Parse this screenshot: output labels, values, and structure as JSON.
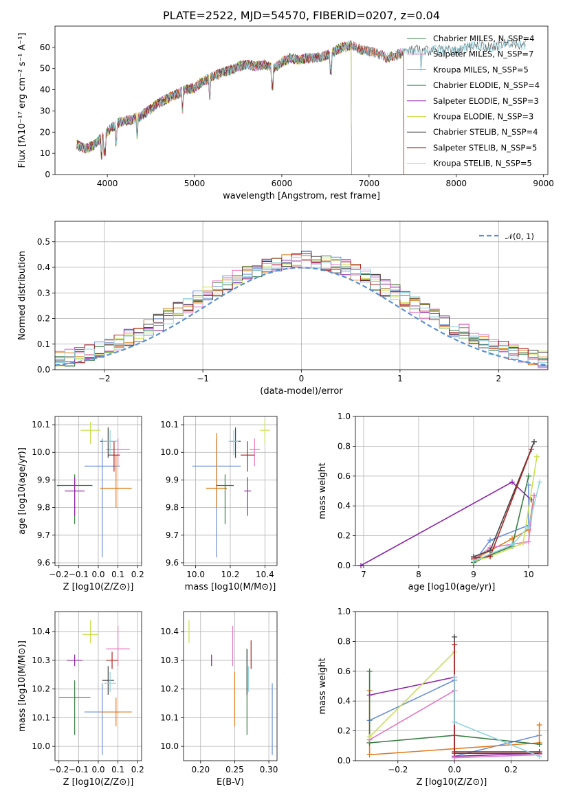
{
  "chart_data": [
    {
      "id": "spectrum",
      "type": "line",
      "title": "PLATE=2522, MJD=54570, FIBERID=0207, z=0.04",
      "xlabel": "wavelength [Angstrom, rest frame]",
      "ylabel": "Flux [fλ10⁻¹⁷ erg cm⁻² s⁻¹ A⁻¹]",
      "xlim": [
        3400,
        9050
      ],
      "ylim": [
        0,
        70
      ],
      "xticks": [
        4000,
        5000,
        6000,
        7000,
        8000,
        9000
      ],
      "yticks": [
        0,
        10,
        20,
        30,
        40,
        50,
        60
      ],
      "grid": false,
      "legend_position": "top-right",
      "continuum": {
        "x": [
          3650,
          3750,
          3850,
          3950,
          4050,
          4150,
          4300,
          4400,
          4500,
          4600,
          4700,
          4800,
          4900,
          5000,
          5100,
          5200,
          5300,
          5400,
          5500,
          5600,
          5700,
          5800,
          5900,
          6000,
          6100,
          6200,
          6300,
          6400,
          6500,
          6600,
          6700,
          6800,
          6900,
          7000,
          7100,
          7200,
          7300,
          7400,
          7600,
          7800,
          8000,
          8200,
          8400,
          8600,
          8800
        ],
        "y": [
          14,
          12,
          14,
          18,
          22,
          25,
          26,
          28,
          31,
          34,
          36,
          38,
          40,
          41,
          44,
          46,
          48,
          49,
          51,
          52,
          51,
          52,
          50,
          53,
          55,
          54,
          55,
          55,
          56,
          58,
          60,
          61,
          59,
          58,
          57,
          55,
          56,
          58,
          59,
          60,
          59,
          62,
          61,
          63,
          62
        ]
      },
      "series": [
        {
          "name": "Chabrier MILES, N_SSP=4",
          "color": "#3a7d44",
          "xmax": 7400
        },
        {
          "name": "Salpeter MILES, N_SSP=7",
          "color": "#e377c2",
          "xmax": 7400
        },
        {
          "name": "Kroupa MILES, N_SSP=5",
          "color": "#e07b1a",
          "xmax": 7400
        },
        {
          "name": "Chabrier ELODIE, N_SSP=4",
          "color": "#2e8b57",
          "xmax": 6800
        },
        {
          "name": "Salpeter ELODIE, N_SSP=3",
          "color": "#8e24aa",
          "xmax": 6800
        },
        {
          "name": "Kroupa ELODIE, N_SSP=3",
          "color": "#c9e04b",
          "xmax": 6800
        },
        {
          "name": "Chabrier STELIB, N_SSP=4",
          "color": "#444444",
          "xmax": 8800
        },
        {
          "name": "Salpeter STELIB, N_SSP=5",
          "color": "#b22222",
          "xmax": 7400
        },
        {
          "name": "Kroupa STELIB, N_SSP=5",
          "color": "#8fd3e0",
          "xmax": 8800
        }
      ]
    },
    {
      "id": "residuals",
      "type": "line",
      "xlabel": "(data-model)/error",
      "ylabel": "Normed distribution",
      "xlim": [
        -2.5,
        2.5
      ],
      "ylim": [
        0,
        0.58
      ],
      "xticks": [
        -2,
        -1,
        0,
        1,
        2
      ],
      "yticks": [
        0.0,
        0.1,
        0.2,
        0.3,
        0.4,
        0.5
      ],
      "grid": true,
      "legend_position": "top-right",
      "reference": {
        "name": "𝒩(0, 1)",
        "color": "#5b8fd6"
      },
      "bin_width": 0.1,
      "series_colors": [
        "#6b8fd6",
        "#e07b1a",
        "#3a7d44",
        "#8e24aa",
        "#e377c2",
        "#c9e04b",
        "#444444",
        "#b22222",
        "#8fd3e0"
      ]
    },
    {
      "id": "age_vs_Z",
      "type": "scatter",
      "xlabel": "Z [log10(Z/Z⊙)]",
      "ylabel": "age [log10(age/yr)]",
      "xlim": [
        -0.22,
        0.22
      ],
      "ylim": [
        9.59,
        10.13
      ],
      "xticks": [
        -0.2,
        -0.1,
        0.0,
        0.1,
        0.2
      ],
      "yticks": [
        9.6,
        9.7,
        9.8,
        9.9,
        10.0,
        10.1
      ],
      "grid": true,
      "points": [
        {
          "x": 0.02,
          "y": 9.95,
          "xerr": 0.09,
          "yerr": [
            0.33,
            0.1
          ],
          "color": "#6b8fd6"
        },
        {
          "x": 0.09,
          "y": 9.87,
          "xerr": 0.08,
          "yerr": [
            0.07,
            0.12
          ],
          "color": "#e07b1a"
        },
        {
          "x": -0.12,
          "y": 9.88,
          "xerr": 0.09,
          "yerr": [
            0.14,
            0.04
          ],
          "color": "#3a7d44"
        },
        {
          "x": -0.12,
          "y": 9.86,
          "xerr": 0.05,
          "yerr": [
            0.09,
            0.05
          ],
          "color": "#8e24aa"
        },
        {
          "x": 0.1,
          "y": 10.01,
          "xerr": 0.06,
          "yerr": [
            0.06,
            0.04
          ],
          "color": "#e377c2"
        },
        {
          "x": -0.04,
          "y": 10.08,
          "xerr": 0.05,
          "yerr": [
            0.05,
            0.03
          ],
          "color": "#c9e04b"
        },
        {
          "x": 0.05,
          "y": 10.04,
          "xerr": 0.04,
          "yerr": [
            0.06,
            0.05
          ],
          "color": "#444444"
        },
        {
          "x": 0.08,
          "y": 9.99,
          "xerr": 0.03,
          "yerr": [
            0.06,
            0.05
          ],
          "color": "#b22222"
        },
        {
          "x": 0.06,
          "y": 10.04,
          "xerr": 0.04,
          "yerr": [
            0.05,
            0.04
          ],
          "color": "#8fd3e0"
        }
      ]
    },
    {
      "id": "age_vs_mass",
      "type": "scatter",
      "xlabel": "mass [log10(M/M⊙)]",
      "xlim": [
        9.93,
        10.47
      ],
      "ylim": [
        9.59,
        10.13
      ],
      "xticks": [
        10.0,
        10.2,
        10.4
      ],
      "yticks": [
        9.6,
        9.7,
        9.8,
        9.9,
        10.0,
        10.1
      ],
      "grid": true,
      "points": [
        {
          "x": 10.12,
          "y": 9.95,
          "xerr": 0.14,
          "yerr": [
            0.33,
            0.1
          ],
          "color": "#6b8fd6"
        },
        {
          "x": 10.12,
          "y": 9.87,
          "xerr": 0.06,
          "yerr": [
            0.07,
            0.2
          ],
          "color": "#e07b1a"
        },
        {
          "x": 10.17,
          "y": 9.88,
          "xerr": 0.05,
          "yerr": [
            0.14,
            0.04
          ],
          "color": "#3a7d44"
        },
        {
          "x": 10.3,
          "y": 9.86,
          "xerr": 0.02,
          "yerr": [
            0.09,
            0.05
          ],
          "color": "#8e24aa"
        },
        {
          "x": 10.34,
          "y": 10.01,
          "xerr": 0.03,
          "yerr": [
            0.06,
            0.04
          ],
          "color": "#e377c2"
        },
        {
          "x": 10.4,
          "y": 10.08,
          "xerr": 0.03,
          "yerr": [
            0.05,
            0.04
          ],
          "color": "#c9e04b"
        },
        {
          "x": 10.23,
          "y": 10.04,
          "xerr": 0.03,
          "yerr": [
            0.06,
            0.05
          ],
          "color": "#444444"
        },
        {
          "x": 10.3,
          "y": 9.99,
          "xerr": 0.04,
          "yerr": [
            0.06,
            0.05
          ],
          "color": "#b22222"
        },
        {
          "x": 10.22,
          "y": 10.04,
          "xerr": 0.03,
          "yerr": [
            0.05,
            0.04
          ],
          "color": "#8fd3e0"
        }
      ]
    },
    {
      "id": "weight_vs_age",
      "type": "line",
      "xlabel": "age [log10(age/yr)]",
      "ylabel": "mass weight",
      "xlim": [
        6.85,
        10.35
      ],
      "ylim": [
        0.0,
        1.0
      ],
      "xticks": [
        7,
        8,
        9,
        10
      ],
      "yticks": [
        0.0,
        0.2,
        0.4,
        0.6,
        0.8,
        1.0
      ],
      "grid": true,
      "series": [
        {
          "color": "#6b8fd6",
          "x": [
            9.0,
            9.3,
            10.0,
            10.0
          ],
          "y": [
            0.02,
            0.17,
            0.27,
            0.54
          ]
        },
        {
          "color": "#e07b1a",
          "x": [
            9.0,
            9.3,
            9.7,
            10.0,
            10.1
          ],
          "y": [
            0.04,
            0.1,
            0.18,
            0.24,
            0.47
          ]
        },
        {
          "color": "#3a7d44",
          "x": [
            9.0,
            9.3,
            9.7,
            10.0
          ],
          "y": [
            0.02,
            0.07,
            0.13,
            0.6
          ]
        },
        {
          "color": "#8e24aa",
          "x": [
            6.95,
            9.7,
            10.05
          ],
          "y": [
            0.0,
            0.56,
            0.44
          ]
        },
        {
          "color": "#e377c2",
          "x": [
            9.0,
            9.3,
            10.0,
            10.1
          ],
          "y": [
            0.04,
            0.12,
            0.16,
            0.47
          ]
        },
        {
          "color": "#c9e04b",
          "x": [
            9.0,
            9.3,
            9.9,
            10.15
          ],
          "y": [
            0.03,
            0.06,
            0.15,
            0.73
          ]
        },
        {
          "color": "#444444",
          "x": [
            9.0,
            9.3,
            10.1
          ],
          "y": [
            0.06,
            0.1,
            0.83
          ]
        },
        {
          "color": "#b22222",
          "x": [
            9.0,
            9.3,
            10.05
          ],
          "y": [
            0.05,
            0.06,
            0.78
          ]
        },
        {
          "color": "#8fd3e0",
          "x": [
            9.0,
            9.7,
            10.0,
            10.2
          ],
          "y": [
            0.03,
            0.14,
            0.26,
            0.56
          ]
        }
      ]
    },
    {
      "id": "mass_vs_Z",
      "type": "scatter",
      "xlabel": "Z [log10(Z/Z⊙)]",
      "ylabel": "mass [log10(M/M⊙)]",
      "xlim": [
        -0.22,
        0.22
      ],
      "ylim": [
        9.95,
        10.47
      ],
      "xticks": [
        -0.2,
        -0.1,
        0.0,
        0.1,
        0.2
      ],
      "yticks": [
        10.0,
        10.1,
        10.2,
        10.3,
        10.4
      ],
      "grid": true,
      "points": [
        {
          "x": 0.02,
          "y": 10.12,
          "xerr": 0.09,
          "yerr": [
            0.15,
            0.1
          ],
          "color": "#6b8fd6"
        },
        {
          "x": 0.09,
          "y": 10.12,
          "xerr": 0.08,
          "yerr": [
            0.05,
            0.05
          ],
          "color": "#e07b1a"
        },
        {
          "x": -0.12,
          "y": 10.17,
          "xerr": 0.08,
          "yerr": [
            0.13,
            0.06
          ],
          "color": "#3a7d44"
        },
        {
          "x": -0.12,
          "y": 10.3,
          "xerr": 0.04,
          "yerr": [
            0.02,
            0.02
          ],
          "color": "#8e24aa"
        },
        {
          "x": 0.1,
          "y": 10.34,
          "xerr": 0.06,
          "yerr": [
            0.06,
            0.08
          ],
          "color": "#e377c2"
        },
        {
          "x": -0.04,
          "y": 10.39,
          "xerr": 0.04,
          "yerr": [
            0.03,
            0.05
          ],
          "color": "#c9e04b"
        },
        {
          "x": 0.05,
          "y": 10.23,
          "xerr": 0.03,
          "yerr": [
            0.05,
            0.05
          ],
          "color": "#444444"
        },
        {
          "x": 0.07,
          "y": 10.3,
          "xerr": 0.03,
          "yerr": [
            0.03,
            0.03
          ],
          "color": "#b22222"
        },
        {
          "x": 0.06,
          "y": 10.22,
          "xerr": 0.03,
          "yerr": [
            0.03,
            0.04
          ],
          "color": "#8fd3e0"
        }
      ]
    },
    {
      "id": "mass_vs_ebv",
      "type": "scatter",
      "xlabel": "E(B-V)",
      "xlim": [
        0.175,
        0.312
      ],
      "ylim": [
        9.95,
        10.47
      ],
      "xticks": [
        0.2,
        0.25,
        0.3
      ],
      "yticks": [
        10.0,
        10.1,
        10.2,
        10.3,
        10.4
      ],
      "grid": true,
      "points": [
        {
          "x": 0.305,
          "y": 10.12,
          "xerr": 0.0,
          "yerr": [
            0.15,
            0.1
          ],
          "color": "#6b8fd6"
        },
        {
          "x": 0.25,
          "y": 10.12,
          "xerr": 0.0,
          "yerr": [
            0.05,
            0.14
          ],
          "color": "#e07b1a"
        },
        {
          "x": 0.268,
          "y": 10.17,
          "xerr": 0.0,
          "yerr": [
            0.13,
            0.17
          ],
          "color": "#3a7d44"
        },
        {
          "x": 0.216,
          "y": 10.3,
          "xerr": 0.0,
          "yerr": [
            0.02,
            0.02
          ],
          "color": "#8e24aa"
        },
        {
          "x": 0.247,
          "y": 10.34,
          "xerr": 0.0,
          "yerr": [
            0.06,
            0.08
          ],
          "color": "#e377c2"
        },
        {
          "x": 0.183,
          "y": 10.4,
          "xerr": 0.0,
          "yerr": [
            0.04,
            0.04
          ],
          "color": "#c9e04b"
        },
        {
          "x": 0.268,
          "y": 10.23,
          "xerr": 0.0,
          "yerr": [
            0.05,
            0.11
          ],
          "color": "#444444"
        },
        {
          "x": 0.274,
          "y": 10.3,
          "xerr": 0.0,
          "yerr": [
            0.03,
            0.07
          ],
          "color": "#b22222"
        },
        {
          "x": 0.27,
          "y": 10.22,
          "xerr": 0.0,
          "yerr": [
            0.03,
            0.06
          ],
          "color": "#8fd3e0"
        }
      ]
    },
    {
      "id": "weight_vs_Z",
      "type": "line",
      "xlabel": "Z [log10(Z/Z⊙)]",
      "ylabel": "mass weight",
      "xlim": [
        -0.35,
        0.33
      ],
      "ylim": [
        0.0,
        1.0
      ],
      "xticks": [
        -0.2,
        0.0,
        0.2
      ],
      "yticks": [
        0.0,
        0.2,
        0.4,
        0.6,
        0.8,
        1.0
      ],
      "grid": true,
      "series": [
        {
          "color": "#6b8fd6",
          "x": [
            -0.3,
            0.0,
            0.0,
            0.3
          ],
          "y": [
            0.27,
            0.54,
            0.03,
            0.17
          ]
        },
        {
          "color": "#e07b1a",
          "x": [
            -0.3,
            -0.3,
            0.0,
            0.3,
            0.3
          ],
          "y": [
            0.47,
            0.04,
            0.08,
            0.12,
            0.24
          ]
        },
        {
          "color": "#3a7d44",
          "x": [
            -0.3,
            -0.3,
            0.0,
            0.3
          ],
          "y": [
            0.6,
            0.12,
            0.17,
            0.11
          ]
        },
        {
          "color": "#8e24aa",
          "x": [
            -0.3,
            0.0,
            0.0,
            0.3
          ],
          "y": [
            0.44,
            0.56,
            0.03,
            0.05
          ]
        },
        {
          "color": "#e377c2",
          "x": [
            -0.3,
            0.0,
            0.0,
            0.3
          ],
          "y": [
            0.14,
            0.47,
            0.02,
            0.04
          ]
        },
        {
          "color": "#c9e04b",
          "x": [
            -0.3,
            0.0
          ],
          "y": [
            0.16,
            0.73
          ]
        },
        {
          "color": "#444444",
          "x": [
            0.0,
            0.0,
            0.3
          ],
          "y": [
            0.83,
            0.06,
            0.06
          ]
        },
        {
          "color": "#b22222",
          "x": [
            0.0,
            0.0,
            0.3
          ],
          "y": [
            0.78,
            0.05,
            0.05
          ]
        },
        {
          "color": "#8fd3e0",
          "x": [
            0.0,
            0.0,
            0.3
          ],
          "y": [
            0.56,
            0.26,
            0.03
          ]
        }
      ]
    }
  ]
}
